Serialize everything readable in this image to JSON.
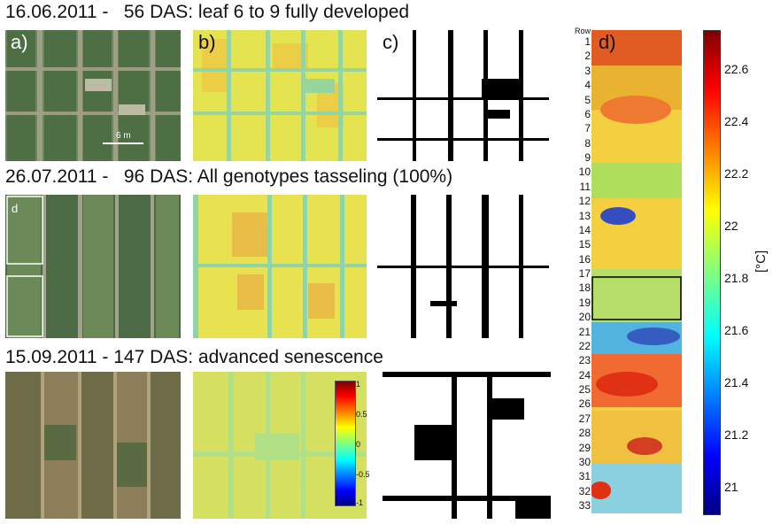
{
  "rows": [
    {
      "date_title": "16.06.2011 -   56 DAS: leaf 6 to 9 fully developed"
    },
    {
      "date_title": "26.07.2011 -   96 DAS: All genotypes tasseling (100%)"
    },
    {
      "date_title": "15.09.2011 - 147 DAS: advanced senescence"
    }
  ],
  "panels": {
    "a": "a)",
    "b": "b)",
    "c": "c)",
    "d": "d)"
  },
  "scalebar_label": "6 m",
  "subset_label": "d",
  "ndvi_inset": {
    "max": "1",
    "half": "0.5",
    "zero": "0",
    "neghalf": "-0.5",
    "min": "-1"
  },
  "temperature_map": {
    "row_header": "Row",
    "row_numbers": [
      "1",
      "2",
      "3",
      "4",
      "5",
      "6",
      "7",
      "8",
      "9",
      "10",
      "11",
      "12",
      "13",
      "14",
      "15",
      "16",
      "17",
      "18",
      "19",
      "20",
      "21",
      "22",
      "23",
      "24",
      "25",
      "26",
      "27",
      "28",
      "29",
      "30",
      "31",
      "32",
      "33"
    ],
    "colorbar_ticks": [
      "22.6",
      "22.4",
      "22.2",
      "22",
      "21.8",
      "21.6",
      "21.4",
      "21.2",
      "21"
    ],
    "unit": "[°C]",
    "colorbar_min": 20.9,
    "colorbar_max": 22.75
  },
  "colors": {
    "field_green": "#5a7a4e",
    "ndvi_yellow": "#e8e84a",
    "ndvi_cyan": "#7fd6b0",
    "highlight_box": "#000000"
  }
}
